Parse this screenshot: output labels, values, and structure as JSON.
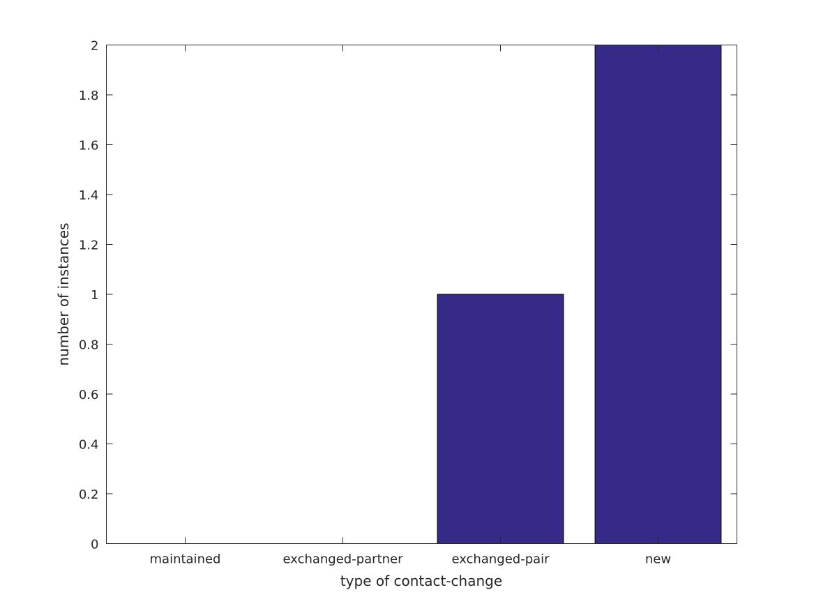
{
  "chart_data": {
    "type": "bar",
    "categories": [
      "maintained",
      "exchanged-partner",
      "exchanged-pair",
      "new"
    ],
    "values": [
      0,
      0,
      1,
      2
    ],
    "title": "",
    "xlabel": "type of contact-change",
    "ylabel": "number of instances",
    "ylim": [
      0,
      2
    ],
    "yticks": [
      "0",
      "0.2",
      "0.4",
      "0.6",
      "0.8",
      "1",
      "1.2",
      "1.4",
      "1.6",
      "1.8",
      "2"
    ],
    "grid": false,
    "bar_color": "#352a87"
  }
}
